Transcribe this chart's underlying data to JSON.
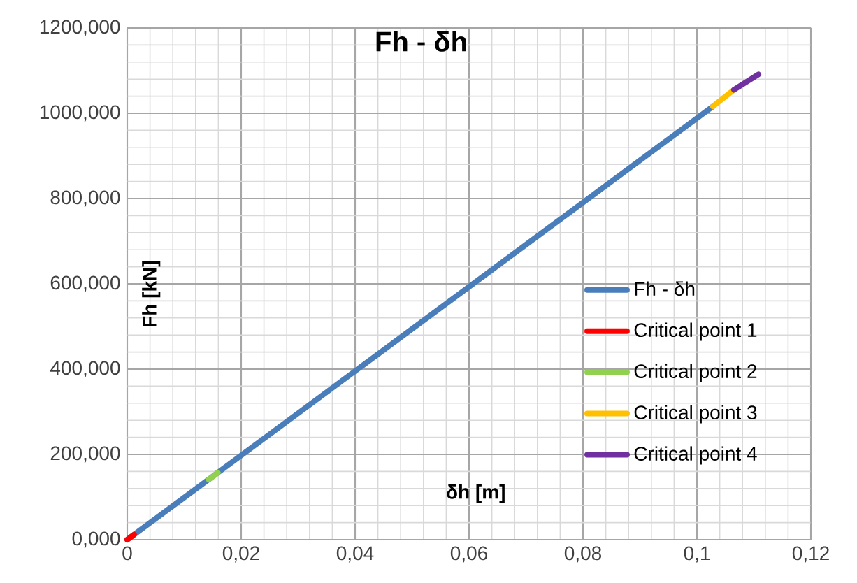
{
  "chart_data": {
    "type": "line",
    "title": "Fh - δh",
    "xlabel": "δh [m]",
    "ylabel": "Fh [kN]",
    "xlim": [
      0,
      0.12
    ],
    "ylim": [
      0,
      1200
    ],
    "xticks": [
      {
        "value": 0,
        "label": "0"
      },
      {
        "value": 0.02,
        "label": "0,02"
      },
      {
        "value": 0.04,
        "label": "0,04"
      },
      {
        "value": 0.06,
        "label": "0,06"
      },
      {
        "value": 0.08,
        "label": "0,08"
      },
      {
        "value": 0.1,
        "label": "0,1"
      },
      {
        "value": 0.12,
        "label": "0,12"
      }
    ],
    "yticks": [
      {
        "value": 0,
        "label": "0,000"
      },
      {
        "value": 200,
        "label": "200,000"
      },
      {
        "value": 400,
        "label": "400,000"
      },
      {
        "value": 600,
        "label": "600,000"
      },
      {
        "value": 800,
        "label": "800,000"
      },
      {
        "value": 1000,
        "label": "1000,000"
      },
      {
        "value": 1200,
        "label": "1200,000"
      }
    ],
    "grid": true,
    "legend": "right",
    "series": [
      {
        "name": "Fh - δh",
        "color": "#4a7ebb",
        "x": [
          0,
          0.1028
        ],
        "values": [
          0,
          1016
        ]
      },
      {
        "name": "Critical point 1",
        "color": "#ff0000",
        "x": [
          0,
          0.0012
        ],
        "values": [
          0,
          12
        ]
      },
      {
        "name": "Critical point 2",
        "color": "#92d050",
        "x": [
          0.0143,
          0.0159
        ],
        "values": [
          141,
          157
        ]
      },
      {
        "name": "Critical point 3",
        "color": "#ffc000",
        "x": [
          0.1028,
          0.1065
        ],
        "values": [
          1016,
          1055
        ]
      },
      {
        "name": "Critical point 4",
        "color": "#7030a0",
        "x": [
          0.1065,
          0.1108
        ],
        "values": [
          1055,
          1091
        ]
      }
    ]
  }
}
